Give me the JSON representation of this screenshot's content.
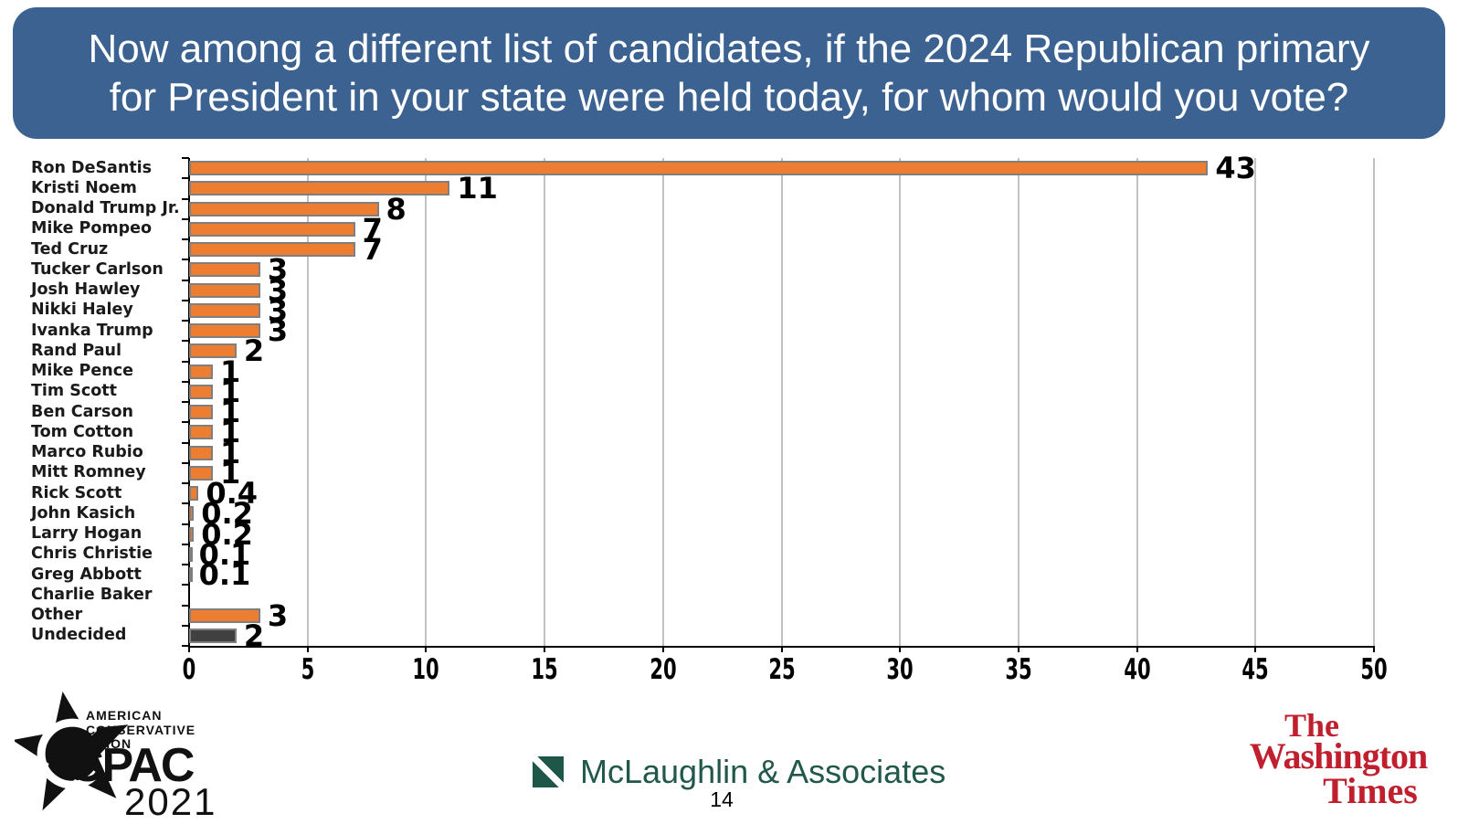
{
  "header": {
    "title_line1": "Now among a different list of candidates, if the 2024 Republican primary",
    "title_line2": "for President in your state were held today, for whom would you vote?",
    "bg_color": "#3B6290"
  },
  "chart_data": {
    "type": "bar",
    "orientation": "horizontal",
    "title": "Now among a different list of candidates, if the 2024 Republican primary for President in your state were held today, for whom would you vote?",
    "categories": [
      "Ron DeSantis",
      "Kristi Noem",
      "Donald Trump Jr.",
      "Mike Pompeo",
      "Ted Cruz",
      "Tucker Carlson",
      "Josh Hawley",
      "Nikki Haley",
      "Ivanka Trump",
      "Rand Paul",
      "Mike Pence",
      "Tim Scott",
      "Ben Carson",
      "Tom Cotton",
      "Marco Rubio",
      "Mitt Romney",
      "Rick Scott",
      "John Kasich",
      "Larry Hogan",
      "Chris Christie",
      "Greg Abbott",
      "Charlie Baker",
      "Other",
      "Undecided"
    ],
    "values": [
      43,
      11,
      8,
      7,
      7,
      3,
      3,
      3,
      3,
      2,
      1,
      1,
      1,
      1,
      1,
      1,
      0.4,
      0.2,
      0.2,
      0.1,
      0.1,
      0,
      3,
      2
    ],
    "labels": [
      "43",
      "11",
      "8",
      "7",
      "7",
      "3",
      "3",
      "3",
      "3",
      "2",
      "1",
      "1",
      "1",
      "1",
      "1",
      "1",
      "0.4",
      "0.2",
      "0.2",
      "0.1",
      "0.1",
      "",
      "3",
      "2"
    ],
    "xlim": [
      0,
      50
    ],
    "x_ticks": [
      0,
      5,
      10,
      15,
      20,
      25,
      30,
      35,
      40,
      45,
      50
    ],
    "grid": true,
    "legend": false,
    "bar_color": "#ED7D31",
    "bar_border_color": "#7F7F7F",
    "undecided_color": "#404040",
    "undecided_category": "Undecided"
  },
  "footer": {
    "cpac": {
      "org_line1": "AMERICAN",
      "org_line2": "CONSERVATIVE",
      "org_line3": "UNION",
      "name": "CPAC",
      "year": "2021"
    },
    "pollster": {
      "name": "McLaughlin & Associates"
    },
    "page_number": "14",
    "publication": {
      "line1": "The",
      "line2": "Washington",
      "line3": "Times"
    }
  },
  "colors": {
    "header_bg": "#3B6290",
    "grid": "#C2C2C2",
    "axis": "#000000",
    "pollster_green": "#20584A",
    "publication_red": "#C01F2E"
  }
}
